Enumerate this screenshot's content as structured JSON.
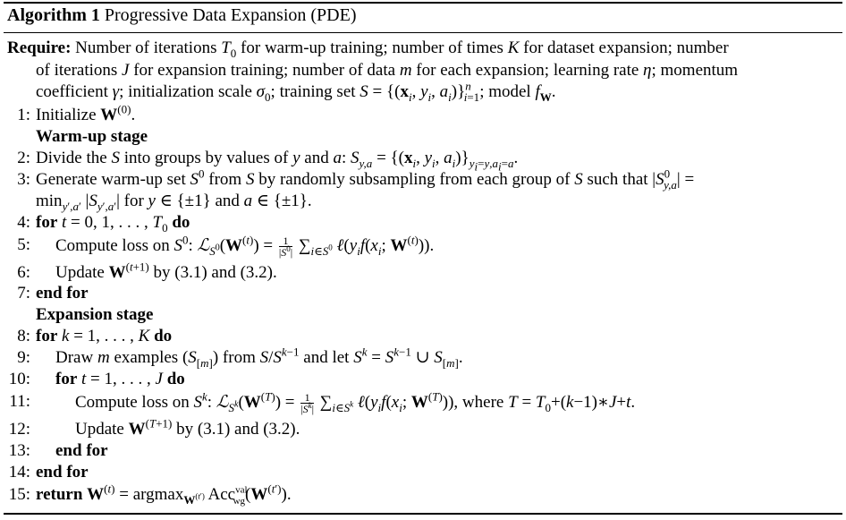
{
  "caption": {
    "label": "Algorithm 1",
    "title": "Progressive Data Expansion (PDE)"
  },
  "require": {
    "keyword": "Require:",
    "line1": "Number of iterations T₀ for warm-up training; number of times K for dataset expansion; number",
    "line2": "of iterations J for expansion training; number of data m for each expansion; learning rate η; momentum",
    "line3": "coefficient γ; initialization scale σ₀; training set S = {(xᵢ, yᵢ, aᵢ)}ⁿᵢ₌₁; model f_W."
  },
  "steps": [
    {
      "num": "1:",
      "text": "Initialize W⁽⁰⁾."
    },
    {
      "num": "",
      "text": "Warm-up stage"
    },
    {
      "num": "2:",
      "text": "Divide the S into groups by values of y and a: S_{y,a} = {(xᵢ, yᵢ, aᵢ)}_{yᵢ=y,aᵢ=a}."
    },
    {
      "num": "3:",
      "text": "Generate warm-up set S⁰ from S by randomly subsampling from each group of S such that |S⁰_{y,a}| ="
    },
    {
      "num": "",
      "text": "min_{y′,a′} |S_{y′,a′}| for y ∈ {±1} and a ∈ {±1}."
    },
    {
      "num": "4:",
      "text": "for t = 0, 1, . . . , T₀ do"
    },
    {
      "num": "5:",
      "text": "Compute loss on S⁰: L_{S⁰}(W⁽ᵗ⁾) = 1/|S⁰| Σ_{i∈S⁰} ℓ(yᵢf(xᵢ; W⁽ᵗ⁾))."
    },
    {
      "num": "6:",
      "text": "Update W⁽ᵗ⁺¹⁾ by (3.1) and (3.2)."
    },
    {
      "num": "7:",
      "text": "end for"
    },
    {
      "num": "",
      "text": "Expansion stage"
    },
    {
      "num": "8:",
      "text": "for k = 1, . . . , K do"
    },
    {
      "num": "9:",
      "text": "Draw m examples (S_[m]) from S/S^{k−1} and let S^k = S^{k−1} ∪ S_[m]."
    },
    {
      "num": "10:",
      "text": "for t = 1, . . . , J do"
    },
    {
      "num": "11:",
      "text": "Compute loss on S^k: L_{S^k}(W⁽ᵀ⁾) = 1/|S^k| Σ_{i∈S^k} ℓ(yᵢf(xᵢ; W⁽ᵀ⁾)), where T = T₀+(k−1)∗J+t."
    },
    {
      "num": "12:",
      "text": "Update W⁽ᵀ⁺¹⁾ by (3.1) and (3.2)."
    },
    {
      "num": "13:",
      "text": "end for"
    },
    {
      "num": "14:",
      "text": "end for"
    },
    {
      "num": "15:",
      "text": "return W⁽ᵗ⁾ = argmax_{W⁽ᵗ′⁾} Acc^{val}_{wg}(W⁽ᵗ′⁾)."
    }
  ]
}
